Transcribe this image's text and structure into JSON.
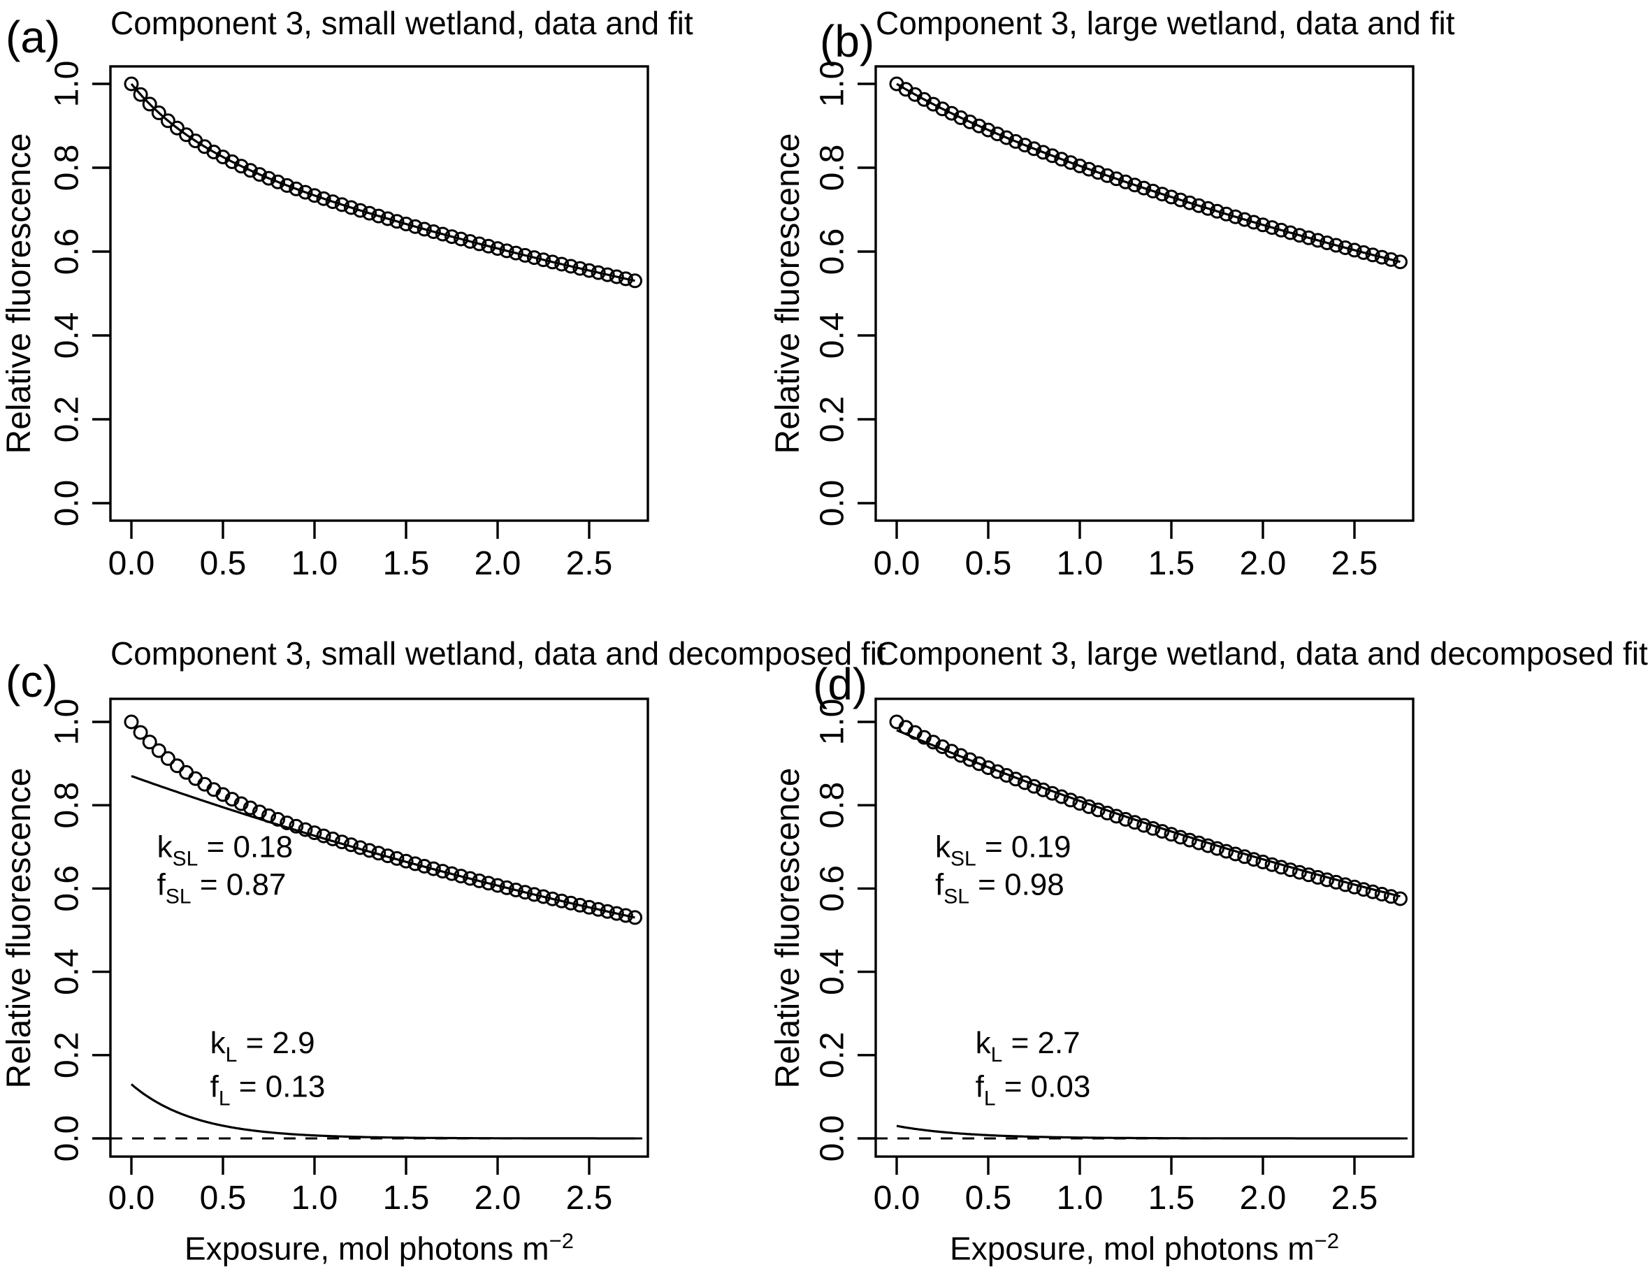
{
  "page": {
    "background": "#ffffff",
    "ink": "#000000"
  },
  "figure": {
    "ylabel": "Relative fluorescence",
    "xlabel_main": "Exposure, mol photons m",
    "xlabel_sup": "−2"
  },
  "chart_data": [
    {
      "type": "scatter",
      "panel": "(a)",
      "title": "Component 3, small wetland, data and fit",
      "ylabel": "Relative fluorescence",
      "xlabel": "",
      "x_ticks": [
        "0.0",
        "0.5",
        "1.0",
        "1.5",
        "2.0",
        "2.5"
      ],
      "y_ticks": [
        "0.0",
        "0.2",
        "0.4",
        "0.6",
        "0.8",
        "1.0"
      ],
      "xlim": [
        -0.11,
        2.86
      ],
      "ylim": [
        -0.04,
        1.06
      ],
      "grid": false,
      "marker": "open-circle",
      "color": "#000000",
      "series_model": {
        "x_start": 0,
        "x_step": 0.05,
        "x_end": 2.75,
        "f_SL": 0.87,
        "k_SL": 0.18,
        "f_L": 0.13,
        "k_L": 2.9,
        "normalized": true
      },
      "show_fit_total": true,
      "show_decomposed": false,
      "annotations": []
    },
    {
      "type": "scatter",
      "panel": "(b)",
      "title": "Component 3, large wetland, data and fit",
      "ylabel": "Relative fluorescence",
      "xlabel": "",
      "x_ticks": [
        "0.0",
        "0.5",
        "1.0",
        "1.5",
        "2.0",
        "2.5"
      ],
      "y_ticks": [
        "0.0",
        "0.2",
        "0.4",
        "0.6",
        "0.8",
        "1.0"
      ],
      "xlim": [
        -0.11,
        2.86
      ],
      "ylim": [
        -0.04,
        1.06
      ],
      "grid": false,
      "marker": "open-circle",
      "color": "#000000",
      "series_model": {
        "x_start": 0,
        "x_step": 0.05,
        "x_end": 2.75,
        "f_SL": 0.98,
        "k_SL": 0.19,
        "f_L": 0.03,
        "k_L": 2.7,
        "normalized": true
      },
      "show_fit_total": true,
      "show_decomposed": false,
      "annotations": []
    },
    {
      "type": "scatter",
      "panel": "(c)",
      "title": "Component 3, small wetland, data and decomposed fit",
      "ylabel": "Relative fluorescence",
      "xlabel": "Exposure, mol photons m⁻²",
      "x_ticks": [
        "0.0",
        "0.5",
        "1.0",
        "1.5",
        "2.0",
        "2.5"
      ],
      "y_ticks": [
        "0.0",
        "0.2",
        "0.4",
        "0.6",
        "0.8",
        "1.0"
      ],
      "xlim": [
        -0.11,
        2.86
      ],
      "ylim": [
        -0.04,
        1.06
      ],
      "grid": false,
      "marker": "open-circle",
      "color": "#000000",
      "series_model": {
        "x_start": 0,
        "x_step": 0.05,
        "x_end": 2.75,
        "f_SL": 0.87,
        "k_SL": 0.18,
        "f_L": 0.13,
        "k_L": 2.9,
        "normalized": true
      },
      "show_fit_total": false,
      "show_decomposed": true,
      "zero_line_dashed": true,
      "annotations": [
        {
          "base": "k",
          "sub": "SL",
          "rest": " = 0.18",
          "x": 0.14,
          "y": 0.675
        },
        {
          "base": "f",
          "sub": "SL",
          "rest": " = 0.87",
          "x": 0.14,
          "y": 0.585
        },
        {
          "base": "k",
          "sub": "L",
          "rest": " = 2.9",
          "x": 0.43,
          "y": 0.205
        },
        {
          "base": "f",
          "sub": "L",
          "rest": " = 0.13",
          "x": 0.43,
          "y": 0.1
        }
      ]
    },
    {
      "type": "scatter",
      "panel": "(d)",
      "title": "Component 3, large wetland, data and decomposed fit",
      "ylabel": "Relative fluorescence",
      "xlabel": "Exposure, mol photons m⁻²",
      "x_ticks": [
        "0.0",
        "0.5",
        "1.0",
        "1.5",
        "2.0",
        "2.5"
      ],
      "y_ticks": [
        "0.0",
        "0.2",
        "0.4",
        "0.6",
        "0.8",
        "1.0"
      ],
      "xlim": [
        -0.11,
        2.86
      ],
      "ylim": [
        -0.04,
        1.06
      ],
      "grid": false,
      "marker": "open-circle",
      "color": "#000000",
      "series_model": {
        "x_start": 0,
        "x_step": 0.05,
        "x_end": 2.75,
        "f_SL": 0.98,
        "k_SL": 0.19,
        "f_L": 0.03,
        "k_L": 2.7,
        "normalized": true
      },
      "show_fit_total": false,
      "show_decomposed": true,
      "zero_line_dashed": true,
      "annotations": [
        {
          "base": "k",
          "sub": "SL",
          "rest": " = 0.19",
          "x": 0.21,
          "y": 0.675
        },
        {
          "base": "f",
          "sub": "SL",
          "rest": " = 0.98",
          "x": 0.21,
          "y": 0.585
        },
        {
          "base": "k",
          "sub": "L",
          "rest": " = 2.7",
          "x": 0.43,
          "y": 0.205
        },
        {
          "base": "f",
          "sub": "L",
          "rest": " = 0.03",
          "x": 0.43,
          "y": 0.1
        }
      ]
    }
  ]
}
